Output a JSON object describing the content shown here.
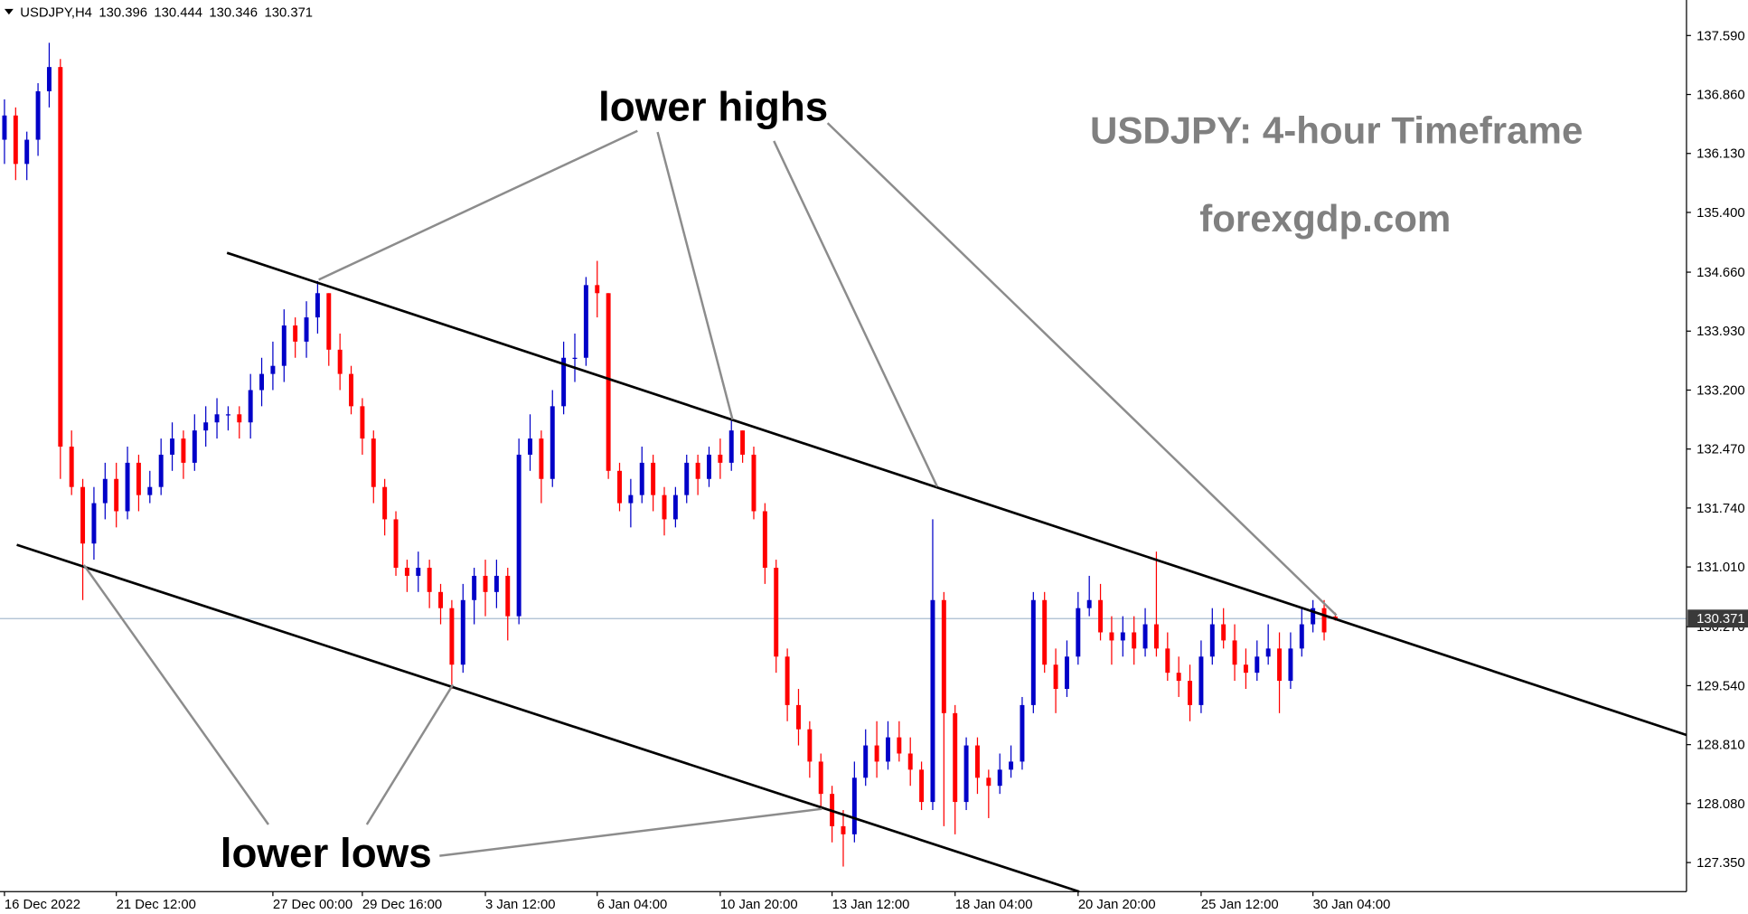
{
  "chart_data": {
    "type": "candlestick",
    "symbol": "USDJPY,H4",
    "header_values": [
      130.396,
      130.444,
      130.346,
      130.371
    ],
    "title": "USDJPY: 4-hour Timeframe",
    "subtitle": "forexgdp.com",
    "annotations": [
      "lower highs",
      "lower lows"
    ],
    "up_color": "#0000c8",
    "down_color": "#ff0000",
    "price_line_color": "#a9bccf",
    "current_price": {
      "value": 130.371,
      "label": "130.371"
    },
    "grid": false,
    "categories": [
      "16 Dec 2022",
      null,
      null,
      null,
      null,
      null,
      null,
      null,
      null,
      null,
      "21 Dec 12:00",
      null,
      null,
      null,
      null,
      null,
      null,
      null,
      null,
      null,
      null,
      null,
      null,
      null,
      "27 Dec 00:00",
      null,
      null,
      null,
      null,
      null,
      null,
      null,
      "29 Dec 16:00",
      null,
      null,
      null,
      null,
      null,
      null,
      null,
      null,
      null,
      null,
      "3 Jan 12:00",
      null,
      null,
      null,
      null,
      null,
      null,
      null,
      null,
      null,
      "6 Jan 04:00",
      null,
      null,
      null,
      null,
      null,
      null,
      null,
      null,
      null,
      null,
      "10 Jan 20:00",
      null,
      null,
      null,
      null,
      null,
      null,
      null,
      null,
      null,
      "13 Jan 12:00",
      null,
      null,
      null,
      null,
      null,
      null,
      null,
      null,
      null,
      null,
      "18 Jan 04:00",
      null,
      null,
      null,
      null,
      null,
      null,
      null,
      null,
      null,
      null,
      "20 Jan 20:00",
      null,
      null,
      null,
      null,
      null,
      null,
      null,
      null,
      null,
      null,
      "25 Jan 12:00",
      null,
      null,
      null,
      null,
      null,
      null,
      null,
      null,
      null,
      "30 Jan 04:00",
      null,
      null
    ],
    "open": [
      136.3,
      136.6,
      136.0,
      136.3,
      136.9,
      137.2,
      132.5,
      132.0,
      131.3,
      131.8,
      132.1,
      131.7,
      132.3,
      131.9,
      132.0,
      132.4,
      132.6,
      132.3,
      132.7,
      132.8,
      132.9,
      132.9,
      132.8,
      133.2,
      133.4,
      133.5,
      134.0,
      133.8,
      134.1,
      134.4,
      133.7,
      133.4,
      133.0,
      132.6,
      132.0,
      131.6,
      131.0,
      130.9,
      131.0,
      130.7,
      130.5,
      129.8,
      130.6,
      130.9,
      130.7,
      130.9,
      130.4,
      132.4,
      132.6,
      132.1,
      133.0,
      133.6,
      133.6,
      134.5,
      134.4,
      132.2,
      131.8,
      131.9,
      132.3,
      131.9,
      131.6,
      131.9,
      132.3,
      132.1,
      132.4,
      132.3,
      132.7,
      132.4,
      131.7,
      131.0,
      129.9,
      129.3,
      129.0,
      128.6,
      128.2,
      127.8,
      127.7,
      128.4,
      128.8,
      128.6,
      128.9,
      128.7,
      128.5,
      128.1,
      130.6,
      129.2,
      128.1,
      128.8,
      128.4,
      128.3,
      128.5,
      128.6,
      129.3,
      130.6,
      129.8,
      129.5,
      129.9,
      130.5,
      130.6,
      130.2,
      130.1,
      130.2,
      130.0,
      130.3,
      130.0,
      129.7,
      129.6,
      129.3,
      129.9,
      130.3,
      130.1,
      129.8,
      129.7,
      129.9,
      130.0,
      129.6,
      130.0,
      130.3,
      130.5,
      130.396
    ],
    "high": [
      136.8,
      136.7,
      136.4,
      137.0,
      137.5,
      137.3,
      132.7,
      132.1,
      132.0,
      132.3,
      132.3,
      132.5,
      132.4,
      132.2,
      132.6,
      132.8,
      132.7,
      132.9,
      133.0,
      133.1,
      133.0,
      133.0,
      133.4,
      133.6,
      133.8,
      134.2,
      134.1,
      134.3,
      134.55,
      134.4,
      133.9,
      133.5,
      133.1,
      132.7,
      132.1,
      131.7,
      131.1,
      131.2,
      131.1,
      130.8,
      130.6,
      130.8,
      131.0,
      131.1,
      131.1,
      131.0,
      132.6,
      132.9,
      132.7,
      133.2,
      133.8,
      133.9,
      134.6,
      134.8,
      134.4,
      132.3,
      132.1,
      132.5,
      132.4,
      132.0,
      132.0,
      132.4,
      132.4,
      132.5,
      132.6,
      132.85,
      132.7,
      132.5,
      131.8,
      131.1,
      130.0,
      129.5,
      129.1,
      128.7,
      128.3,
      128.0,
      128.6,
      129.0,
      129.1,
      129.1,
      129.1,
      128.9,
      128.6,
      131.6,
      130.7,
      129.3,
      128.9,
      128.9,
      128.5,
      128.7,
      128.8,
      129.4,
      130.7,
      130.7,
      130.0,
      130.1,
      130.7,
      130.9,
      130.8,
      130.4,
      130.4,
      130.4,
      130.5,
      131.2,
      130.2,
      129.9,
      129.8,
      130.1,
      130.5,
      130.5,
      130.3,
      130.0,
      130.1,
      130.3,
      130.2,
      130.2,
      130.5,
      130.6,
      130.6,
      130.444
    ],
    "low": [
      136.0,
      135.8,
      135.8,
      136.1,
      136.7,
      132.1,
      131.9,
      130.6,
      131.1,
      131.6,
      131.5,
      131.6,
      131.7,
      131.8,
      131.9,
      132.2,
      132.1,
      132.2,
      132.5,
      132.6,
      132.7,
      132.6,
      132.6,
      133.0,
      133.2,
      133.3,
      133.6,
      133.6,
      133.9,
      133.5,
      133.2,
      132.9,
      132.4,
      131.8,
      131.4,
      130.9,
      130.7,
      130.7,
      130.5,
      130.3,
      129.5,
      129.7,
      130.3,
      130.4,
      130.5,
      130.1,
      130.3,
      132.2,
      131.8,
      132.0,
      132.9,
      133.3,
      133.5,
      134.1,
      132.1,
      131.7,
      131.5,
      131.8,
      131.7,
      131.4,
      131.5,
      131.8,
      131.9,
      132.0,
      132.1,
      132.2,
      132.3,
      131.6,
      130.8,
      129.7,
      129.1,
      128.8,
      128.4,
      128.0,
      127.6,
      127.3,
      127.6,
      128.3,
      128.4,
      128.5,
      128.6,
      128.3,
      128.0,
      128.0,
      127.8,
      127.7,
      128.0,
      128.2,
      127.9,
      128.2,
      128.4,
      128.5,
      129.2,
      129.7,
      129.2,
      129.4,
      129.8,
      130.4,
      130.1,
      129.8,
      129.9,
      129.8,
      129.9,
      129.9,
      129.6,
      129.4,
      129.1,
      129.2,
      129.8,
      130.0,
      129.6,
      129.5,
      129.6,
      129.8,
      129.2,
      129.5,
      129.9,
      130.2,
      130.1,
      130.346
    ],
    "close": [
      136.6,
      136.0,
      136.3,
      136.9,
      137.2,
      132.5,
      132.0,
      131.3,
      131.8,
      132.1,
      131.7,
      132.3,
      131.9,
      132.0,
      132.4,
      132.6,
      132.3,
      132.7,
      132.8,
      132.9,
      132.9,
      132.8,
      133.2,
      133.4,
      133.5,
      134.0,
      133.8,
      134.1,
      134.4,
      133.7,
      133.4,
      133.0,
      132.6,
      132.0,
      131.6,
      131.0,
      130.9,
      131.0,
      130.7,
      130.5,
      129.8,
      130.6,
      130.9,
      130.7,
      130.9,
      130.4,
      132.4,
      132.6,
      132.1,
      133.0,
      133.6,
      133.6,
      134.5,
      134.4,
      132.2,
      131.8,
      131.9,
      132.3,
      131.9,
      131.6,
      131.9,
      132.3,
      132.1,
      132.4,
      132.3,
      132.7,
      132.4,
      131.7,
      131.0,
      129.9,
      129.3,
      129.0,
      128.6,
      128.2,
      127.8,
      127.7,
      128.4,
      128.8,
      128.6,
      128.9,
      128.7,
      128.5,
      128.1,
      130.6,
      129.2,
      128.1,
      128.8,
      128.4,
      128.3,
      128.5,
      128.6,
      129.3,
      130.6,
      129.8,
      129.5,
      129.9,
      130.5,
      130.6,
      130.2,
      130.1,
      130.2,
      130.0,
      130.3,
      130.0,
      129.7,
      129.6,
      129.3,
      129.9,
      130.3,
      130.1,
      129.8,
      129.7,
      129.9,
      130.0,
      129.6,
      130.0,
      130.3,
      130.5,
      130.2,
      130.371
    ],
    "ylim": [
      126.99,
      138.03
    ],
    "yticks": [
      {
        "value": 137.59,
        "label": "137.590"
      },
      {
        "value": 136.86,
        "label": "136.860"
      },
      {
        "value": 136.13,
        "label": "136.130"
      },
      {
        "value": 135.4,
        "label": "135.400"
      },
      {
        "value": 134.66,
        "label": "134.660"
      },
      {
        "value": 133.93,
        "label": "133.930"
      },
      {
        "value": 133.2,
        "label": "133.200"
      },
      {
        "value": 132.47,
        "label": "132.470"
      },
      {
        "value": 131.74,
        "label": "131.740"
      },
      {
        "value": 131.01,
        "label": "131.010"
      },
      {
        "value": 130.27,
        "label": "130.270"
      },
      {
        "value": 129.54,
        "label": "129.540"
      },
      {
        "value": 128.81,
        "label": "128.810"
      },
      {
        "value": 128.08,
        "label": "128.080"
      },
      {
        "value": 127.35,
        "label": "127.350"
      }
    ]
  }
}
